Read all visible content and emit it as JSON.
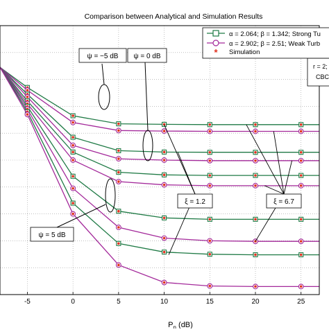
{
  "chart_data": {
    "type": "line",
    "title": "Comparison between Analytical and Simulation Results",
    "xlabel_main": "P",
    "xlabel_sub": "n",
    "xlabel_unit": " (dB)",
    "xlim": [
      -8,
      27
    ],
    "ylim": [
      0,
      1
    ],
    "x_ticks": [
      -5,
      0,
      5,
      10,
      15,
      20,
      25
    ],
    "grid": true,
    "x": [
      -8,
      -5,
      0,
      5,
      10,
      15,
      20,
      25,
      27
    ],
    "series": [
      {
        "group": "green",
        "values": [
          0.845,
          0.77,
          0.665,
          0.635,
          0.633,
          0.632,
          0.632,
          0.632,
          0.632
        ]
      },
      {
        "group": "purple",
        "values": [
          0.845,
          0.76,
          0.64,
          0.61,
          0.608,
          0.607,
          0.607,
          0.607,
          0.607
        ]
      },
      {
        "group": "green",
        "values": [
          0.845,
          0.745,
          0.585,
          0.535,
          0.53,
          0.529,
          0.529,
          0.529,
          0.529
        ]
      },
      {
        "group": "purple",
        "values": [
          0.845,
          0.735,
          0.555,
          0.505,
          0.5,
          0.498,
          0.498,
          0.498,
          0.498
        ]
      },
      {
        "group": "green",
        "values": [
          0.845,
          0.72,
          0.53,
          0.455,
          0.445,
          0.443,
          0.443,
          0.443,
          0.443
        ]
      },
      {
        "group": "purple",
        "values": [
          0.845,
          0.71,
          0.5,
          0.42,
          0.408,
          0.405,
          0.405,
          0.405,
          0.405
        ]
      },
      {
        "group": "green",
        "values": [
          0.845,
          0.7,
          0.44,
          0.31,
          0.285,
          0.28,
          0.28,
          0.28,
          0.28
        ]
      },
      {
        "group": "purple",
        "values": [
          0.845,
          0.69,
          0.395,
          0.25,
          0.21,
          0.2,
          0.198,
          0.198,
          0.198
        ]
      },
      {
        "group": "green",
        "values": [
          0.845,
          0.68,
          0.34,
          0.19,
          0.158,
          0.15,
          0.148,
          0.148,
          0.148
        ]
      },
      {
        "group": "purple",
        "values": [
          0.845,
          0.67,
          0.3,
          0.11,
          0.045,
          0.032,
          0.03,
          0.03,
          0.03
        ]
      }
    ],
    "colors": {
      "green": "#1f7a45",
      "purple": "#a3289a",
      "marker": "#e0301e"
    },
    "legend": {
      "placement": "top-right",
      "entries": [
        {
          "label": "α = 2.064; β = 1.342; Strong Tu",
          "color": "#1f7a45",
          "marker": "square"
        },
        {
          "label": "α = 2.902; β = 2.51; Weak Turb",
          "color": "#a3289a",
          "marker": "circle"
        },
        {
          "label": "Simulation",
          "color": "#e0301e",
          "marker": "star"
        }
      ]
    },
    "side_note": {
      "line1": "r = 2;",
      "line2": "CBC"
    },
    "annotations": [
      {
        "name": "psi-minus5",
        "text": "ψ = −5 dB"
      },
      {
        "name": "psi-0",
        "text": "ψ = 0 dB"
      },
      {
        "name": "psi-5",
        "text": "ψ = 5 dB"
      },
      {
        "name": "xi-1-2",
        "text": "ξ = 1.2"
      },
      {
        "name": "xi-6-7",
        "text": "ξ = 6.7"
      }
    ]
  }
}
